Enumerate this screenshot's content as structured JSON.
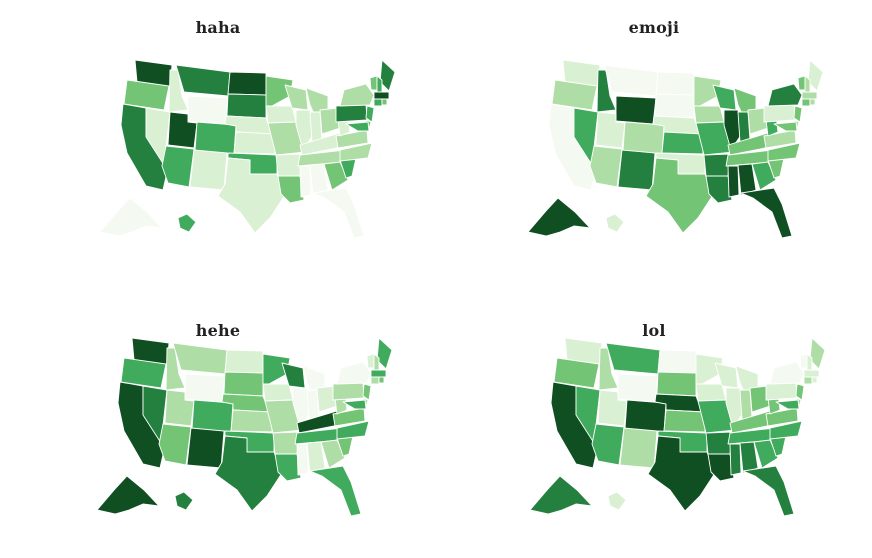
{
  "figure": {
    "panels": [
      {
        "title": "haha",
        "states": {
          "WA": 6,
          "OR": 3,
          "CA": 5,
          "NV": 1,
          "ID": 1,
          "MT": 5,
          "WY": 0,
          "UT": 6,
          "AZ": 4,
          "CO": 4,
          "NM": 1,
          "ND": 6,
          "SD": 5,
          "NE": 1,
          "KS": 1,
          "OK": 4,
          "TX": 1,
          "MN": 3,
          "IA": 1,
          "MO": 2,
          "AR": 1,
          "LA": 3,
          "WI": 2,
          "IL": 1,
          "MI": 2,
          "IN": 1,
          "OH": 2,
          "KY": 1,
          "TN": 2,
          "MS": 0,
          "AL": 0,
          "GA": 3,
          "FL": 0,
          "SC": 4,
          "NC": 2,
          "VA": 2,
          "WV": 1,
          "PA": 5,
          "NY": 2,
          "ME": 5,
          "VT": 3,
          "NH": 4,
          "MA": 6,
          "CT": 4,
          "RI": 3,
          "NJ": 4,
          "DE": 3,
          "MD": 4,
          "AK": 0,
          "HI": 4
        }
      },
      {
        "title": "emoji",
        "states": {
          "WA": 1,
          "OR": 2,
          "CA": 0,
          "NV": 4,
          "ID": 5,
          "MT": 0,
          "WY": 6,
          "UT": 1,
          "AZ": 2,
          "CO": 2,
          "NM": 5,
          "ND": 0,
          "SD": 0,
          "NE": 1,
          "KS": 4,
          "OK": 1,
          "TX": 3,
          "MN": 2,
          "IA": 2,
          "MO": 4,
          "AR": 5,
          "LA": 5,
          "WI": 4,
          "IL": 6,
          "MI": 3,
          "IN": 5,
          "OH": 2,
          "KY": 3,
          "TN": 3,
          "MS": 6,
          "AL": 6,
          "GA": 4,
          "FL": 6,
          "SC": 3,
          "NC": 3,
          "VA": 2,
          "WV": 4,
          "PA": 1,
          "NY": 5,
          "ME": 1,
          "VT": 3,
          "NH": 2,
          "MA": 2,
          "CT": 3,
          "RI": 2,
          "NJ": 3,
          "DE": 2,
          "MD": 3,
          "AK": 6,
          "HI": 1
        }
      },
      {
        "title": "hehe",
        "states": {
          "WA": 6,
          "OR": 4,
          "CA": 6,
          "NV": 5,
          "ID": 2,
          "MT": 2,
          "WY": 0,
          "UT": 2,
          "AZ": 3,
          "CO": 4,
          "NM": 6,
          "ND": 1,
          "SD": 3,
          "NE": 3,
          "KS": 2,
          "OK": 4,
          "TX": 5,
          "MN": 4,
          "IA": 1,
          "MO": 2,
          "AR": 2,
          "LA": 4,
          "WI": 5,
          "IL": 0,
          "MI": 0,
          "IN": 0,
          "OH": 1,
          "KY": 6,
          "TN": 4,
          "MS": 0,
          "AL": 1,
          "GA": 2,
          "FL": 4,
          "SC": 3,
          "NC": 4,
          "VA": 3,
          "WV": 2,
          "PA": 2,
          "NY": 0,
          "ME": 4,
          "VT": 1,
          "NH": 2,
          "MA": 4,
          "CT": 2,
          "RI": 3,
          "NJ": 3,
          "DE": 2,
          "MD": 4,
          "AK": 6,
          "HI": 5
        }
      },
      {
        "title": "lol",
        "states": {
          "WA": 1,
          "OR": 3,
          "CA": 6,
          "NV": 4,
          "ID": 2,
          "MT": 4,
          "WY": 0,
          "UT": 1,
          "AZ": 4,
          "CO": 6,
          "NM": 2,
          "ND": 0,
          "SD": 3,
          "NE": 6,
          "KS": 3,
          "OK": 4,
          "TX": 6,
          "MN": 1,
          "IA": 1,
          "MO": 4,
          "AR": 5,
          "LA": 6,
          "WI": 1,
          "IL": 1,
          "MI": 1,
          "IN": 2,
          "OH": 3,
          "KY": 3,
          "TN": 4,
          "MS": 5,
          "AL": 5,
          "GA": 4,
          "FL": 5,
          "SC": 4,
          "NC": 4,
          "VA": 3,
          "WV": 3,
          "PA": 1,
          "NY": 0,
          "ME": 2,
          "VT": 0,
          "NH": 1,
          "MA": 1,
          "CT": 2,
          "RI": 1,
          "NJ": 3,
          "DE": 2,
          "MD": 4,
          "AK": 5,
          "HI": 1
        }
      }
    ],
    "color_scale": [
      "#f4faf1",
      "#d9f0d3",
      "#aedea6",
      "#74c476",
      "#41ab5d",
      "#23803f",
      "#0f4f22"
    ]
  }
}
